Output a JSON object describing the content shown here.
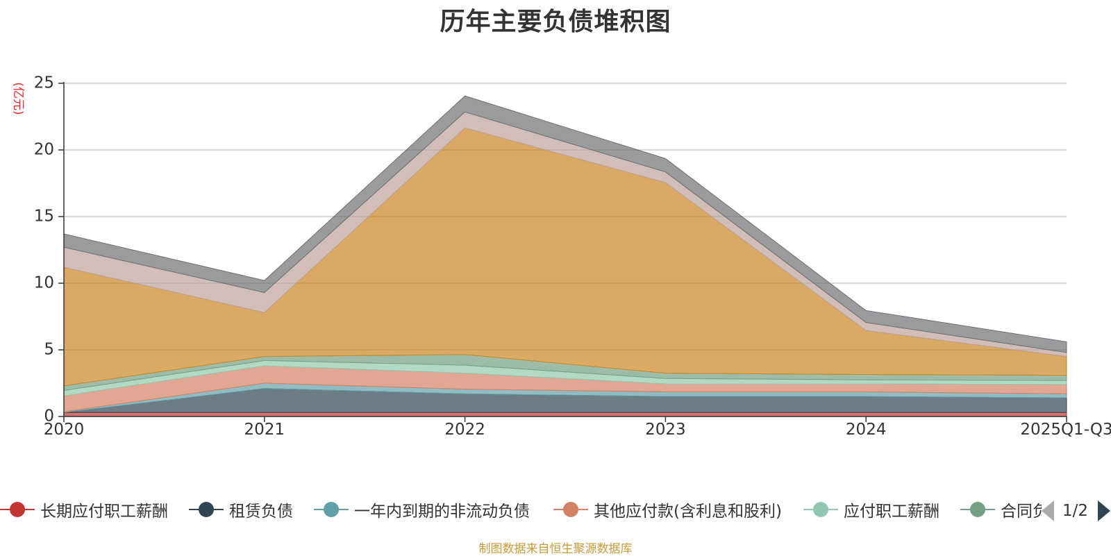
{
  "chart_data": {
    "type": "area",
    "stacked": true,
    "title": "历年主要负债堆积图",
    "ylabel": "(亿元)",
    "x": [
      "2020",
      "2021",
      "2022",
      "2023",
      "2024",
      "2025Q1-Q3"
    ],
    "ylim": [
      0,
      25
    ],
    "yticks": [
      0,
      5,
      10,
      15,
      20,
      25
    ],
    "grid": true,
    "legend_position": "bottom",
    "series": [
      {
        "name": "长期应付职工薪酬",
        "color": "#c23531",
        "values": [
          0.3,
          0.3,
          0.3,
          0.3,
          0.3,
          0.3
        ]
      },
      {
        "name": "租赁负债",
        "color": "#2f4554",
        "values": [
          0.0,
          1.8,
          1.4,
          1.2,
          1.2,
          1.1
        ]
      },
      {
        "name": "一年内到期的非流动负债",
        "color": "#61a0a8",
        "values": [
          0.05,
          0.4,
          0.35,
          0.35,
          0.35,
          0.3
        ]
      },
      {
        "name": "其他应付款(含利息和股利)",
        "color": "#d48265",
        "values": [
          1.2,
          1.3,
          1.2,
          0.6,
          0.6,
          0.7
        ]
      },
      {
        "name": "应付职工薪酬",
        "color": "#91c7ae",
        "values": [
          0.4,
          0.4,
          0.6,
          0.4,
          0.3,
          0.3
        ]
      },
      {
        "name": "合同负债",
        "color": "#749f83",
        "values": [
          0.35,
          0.3,
          0.8,
          0.4,
          0.4,
          0.4
        ]
      },
      {
        "name": "",
        "color": "#ca8622",
        "values": [
          8.9,
          3.3,
          17.0,
          14.3,
          3.3,
          1.4
        ]
      },
      {
        "name": "",
        "color": "#bda29a",
        "values": [
          1.5,
          1.5,
          1.2,
          0.8,
          0.6,
          0.3
        ]
      },
      {
        "name": "",
        "color": "#6e7074",
        "values": [
          1.0,
          0.9,
          1.2,
          1.0,
          0.9,
          0.8
        ]
      }
    ]
  },
  "legend": {
    "page_indicator": "1/2",
    "visible_items": [
      "长期应付职工薪酬",
      "租赁负债",
      "一年内到期的非流动负债",
      "其他应付款(含利息和股利)",
      "应付职工薪酬",
      "合同负债"
    ]
  },
  "footer": {
    "source": "制图数据来自恒生聚源数据库"
  }
}
